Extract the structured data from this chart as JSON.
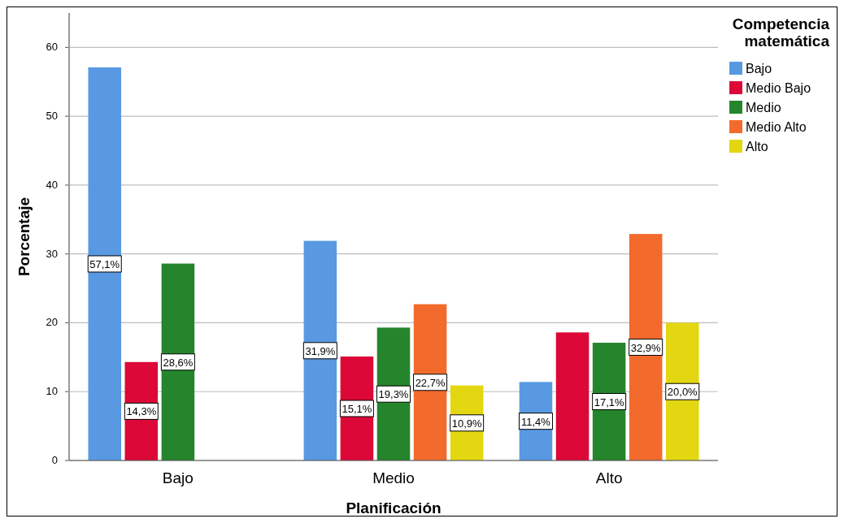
{
  "chart_data": {
    "type": "bar",
    "xlabel": "Planificación",
    "ylabel": "Porcentaje",
    "legend_title": "Competencia matemática",
    "categories": [
      "Bajo",
      "Medio",
      "Alto"
    ],
    "series": [
      {
        "name": "Bajo",
        "color": "#5899e2",
        "values": [
          57.1,
          31.9,
          11.4
        ],
        "value_labels": [
          "57,1%",
          "31,9%",
          "11,4%"
        ]
      },
      {
        "name": "Medio Bajo",
        "color": "#dc0838",
        "values": [
          14.3,
          15.1,
          18.6
        ],
        "value_labels": [
          "14,3%",
          "15,1%",
          null
        ]
      },
      {
        "name": "Medio",
        "color": "#25852c",
        "values": [
          28.6,
          19.3,
          17.1
        ],
        "value_labels": [
          "28,6%",
          "19,3%",
          "17,1%"
        ]
      },
      {
        "name": "Medio Alto",
        "color": "#f26b2c",
        "values": [
          null,
          22.7,
          32.9
        ],
        "value_labels": [
          null,
          "22,7%",
          "32,9%"
        ]
      },
      {
        "name": "Alto",
        "color": "#e3d712",
        "values": [
          null,
          10.9,
          20.0
        ],
        "value_labels": [
          null,
          "10,9%",
          "20,0%"
        ]
      }
    ],
    "ylim": [
      0,
      65
    ],
    "yticks": [
      0,
      10,
      20,
      30,
      40,
      50,
      60
    ],
    "grid": "y",
    "legend": "right"
  }
}
